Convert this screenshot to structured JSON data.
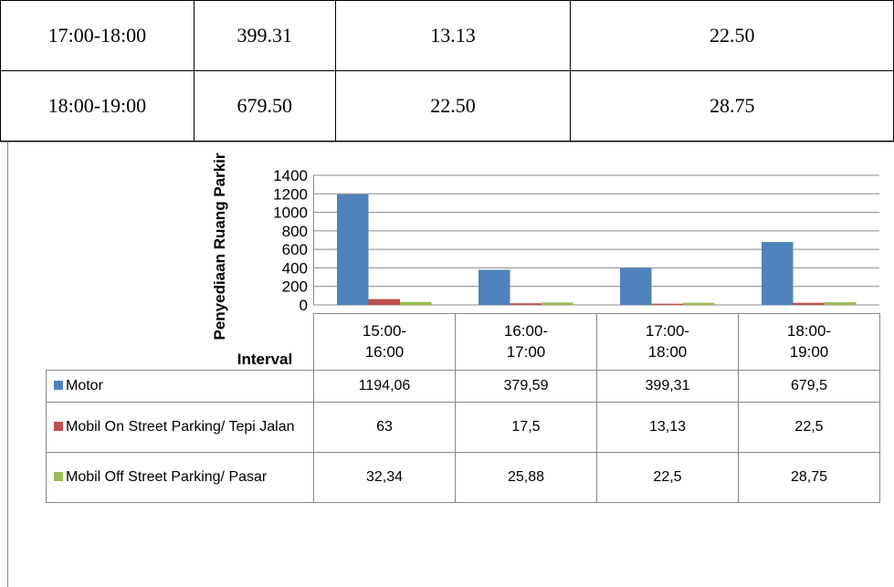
{
  "table": {
    "rows": [
      [
        "17:00-18:00",
        "399.31",
        "13.13",
        "22.50"
      ],
      [
        "18:00-19:00",
        "679.50",
        "22.50",
        "28.75"
      ]
    ]
  },
  "chart_data": {
    "type": "bar",
    "ylabel": "Penyediaan Ruang Parkir",
    "xlabel": "Interval",
    "categories": [
      "15:00-\n16:00",
      "16:00-\n17:00",
      "17:00-\n18:00",
      "18:00-\n19:00"
    ],
    "series": [
      {
        "name": "Motor",
        "color": "#4f81bd",
        "values": [
          1194.06,
          379.59,
          399.31,
          679.5
        ],
        "value_labels": [
          "1194,06",
          "379,59",
          "399,31",
          "679,5"
        ]
      },
      {
        "name": "Mobil On Street Parking/ Tepi Jalan",
        "color": "#c0504d",
        "values": [
          63,
          17.5,
          13.13,
          22.5
        ],
        "value_labels": [
          "63",
          "17,5",
          "13,13",
          "22,5"
        ]
      },
      {
        "name": "Mobil Off Street Parking/ Pasar",
        "color": "#9bbb59",
        "values": [
          32.34,
          25.88,
          22.5,
          28.75
        ],
        "value_labels": [
          "32,34",
          "25,88",
          "22,5",
          "28,75"
        ]
      }
    ],
    "ylim": [
      0,
      1400
    ],
    "yticks": [
      0,
      200,
      400,
      600,
      800,
      1000,
      1200,
      1400
    ],
    "grid": true
  }
}
